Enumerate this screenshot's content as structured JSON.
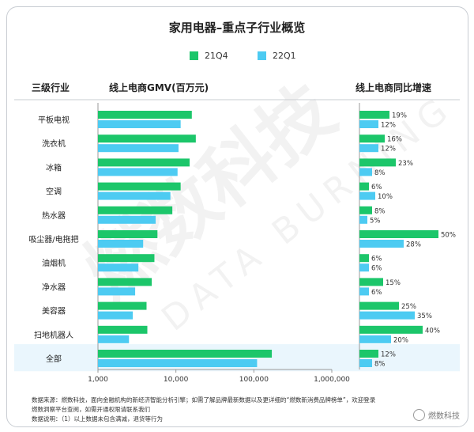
{
  "title": "家用电器–重点子行业概览",
  "headers": {
    "category": "三级行业",
    "gmv": "线上电商GMV(百万元)",
    "growth": "线上电商同比增速"
  },
  "colors": {
    "q4": "#1cc66a",
    "q1": "#4dcbf2",
    "highlight": "#eaf6fd",
    "axis": "#999999",
    "text": "#222222"
  },
  "chart_data": {
    "type": "bar",
    "orientation": "horizontal",
    "x_scale": "log",
    "xlim": [
      1000,
      1000000
    ],
    "xticks": [
      "1,000",
      "10,000",
      "100,000",
      "1,000,000"
    ],
    "categories": [
      "平板电视",
      "洗衣机",
      "冰箱",
      "空调",
      "热水器",
      "吸尘器/电拖把",
      "油烟机",
      "净水器",
      "美容器",
      "扫地机器人",
      "全部"
    ],
    "series": [
      {
        "name": "21Q4",
        "gmv": [
          16000,
          18000,
          15000,
          11500,
          9000,
          5800,
          5300,
          4900,
          4200,
          4300,
          170000
        ],
        "growth": [
          19,
          16,
          23,
          6,
          8,
          50,
          6,
          15,
          25,
          40,
          12
        ]
      },
      {
        "name": "22Q1",
        "gmv": [
          11500,
          10800,
          10500,
          8500,
          5500,
          3800,
          3300,
          3000,
          2800,
          2500,
          110000
        ],
        "growth": [
          12,
          12,
          8,
          10,
          5,
          28,
          6,
          6,
          35,
          20,
          8
        ]
      }
    ],
    "growth_labels": {
      "21Q4": [
        "19%",
        "16%",
        "23%",
        "6%",
        "8%",
        "50%",
        "6%",
        "15%",
        "25%",
        "40%",
        "12%"
      ],
      "22Q1": [
        "12%",
        "12%",
        "8%",
        "10%",
        "5%",
        "28%",
        "6%",
        "6%",
        "35%",
        "20%",
        "8%"
      ]
    }
  },
  "watermark": {
    "cn": "燃数科技",
    "en": "DATA BURNING"
  },
  "footer": {
    "line1": "数据来源：燃数科技，面向金融机构的新经济智能分析引擎；如需了解品牌最新数据以及更详细的“燃数新消费品牌榜单”，欢迎登录",
    "line2": "燃数洞察平台查阅，如需开通权限请联系我们",
    "line3": "数据说明：（1）以上数据未包含满减，退货等行为"
  },
  "brand": "燃数科技"
}
